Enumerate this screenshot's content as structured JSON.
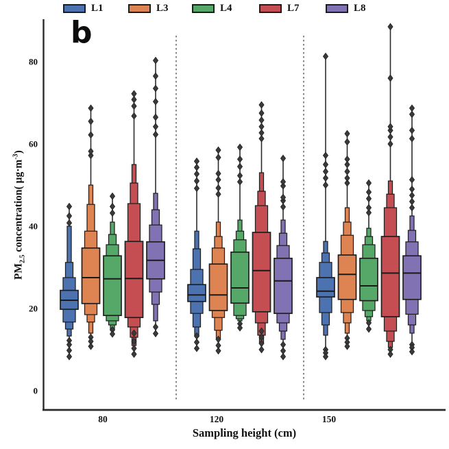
{
  "figure": {
    "panel_label": "b"
  },
  "legend": {
    "position": "top",
    "entries": [
      {
        "label": "L1",
        "color": "#4c72b0"
      },
      {
        "label": "L3",
        "color": "#dd8452"
      },
      {
        "label": "L4",
        "color": "#55a868"
      },
      {
        "label": "L7",
        "color": "#c44e52"
      },
      {
        "label": "L8",
        "color": "#8172b3"
      }
    ]
  },
  "axes": {
    "ylabel_pm": "PM",
    "ylabel_sub": "2.5",
    "ylabel_rest": " concentration( ",
    "ylabel_unit": "μg·m",
    "ylabel_sup": "-3",
    "ylabel_close": ")",
    "xlabel": "Sampling height (cm)",
    "y_ticks": [
      0,
      20,
      40,
      60,
      80
    ],
    "x_tick_labels": [
      "80",
      "120",
      "150"
    ]
  },
  "chart_data": {
    "type": "boxen",
    "description": "Grouped letter-value (boxen) plots of PM2.5 concentration by sampling height; spans are nested quantile boxes [low,high] from widest (innermost) to narrowest (outermost) level, values in ug/m3.",
    "title": "b",
    "xlabel": "Sampling height (cm)",
    "ylabel": "PM2.5 concentration( ug·m-3 )",
    "ylim": [
      0,
      80
    ],
    "grid": false,
    "legend_position": "top",
    "categories": [
      "80",
      "120",
      "150"
    ],
    "series": [
      {
        "name": "L1",
        "color": "#4c72b0",
        "groups": [
          {
            "median": 22.0,
            "spans": [
              [
                19.8,
                24.4
              ],
              [
                16.7,
                27.5
              ],
              [
                15.0,
                31.2
              ],
              [
                13.3,
                40.0
              ]
            ],
            "outliers_high": [
              40.8,
              42.5,
              44.8
            ],
            "outliers_low": [
              12.2,
              11.2,
              9.8,
              8.3
            ]
          },
          {
            "median": 23.3,
            "spans": [
              [
                21.7,
                25.8
              ],
              [
                18.8,
                29.5
              ],
              [
                15.5,
                34.5
              ],
              [
                13.5,
                38.8
              ]
            ],
            "outliers_high": [
              49.2,
              51.0,
              52.7,
              54.3,
              55.8
            ],
            "outliers_low": [
              13.3,
              11.8,
              10.3
            ]
          },
          {
            "median": 24.2,
            "spans": [
              [
                22.8,
                27.5
              ],
              [
                19.0,
                31.2
              ],
              [
                16.0,
                33.5
              ],
              [
                13.5,
                36.3
              ]
            ],
            "outliers_high": [
              50.0,
              51.7,
              53.3,
              55.0,
              57.2,
              81.3
            ],
            "outliers_low": [
              10.0,
              9.2,
              8.3
            ]
          }
        ]
      },
      {
        "name": "L3",
        "color": "#dd8452",
        "groups": [
          {
            "median": 27.5,
            "spans": [
              [
                21.2,
                34.7
              ],
              [
                18.5,
                38.8
              ],
              [
                16.7,
                45.3
              ],
              [
                14.0,
                50.0
              ]
            ],
            "outliers_high": [
              57.2,
              58.2,
              62.2,
              65.5,
              68.7
            ],
            "outliers_low": [
              13.0,
              12.0,
              10.8
            ]
          },
          {
            "median": 23.3,
            "spans": [
              [
                19.5,
                30.8
              ],
              [
                17.8,
                34.7
              ],
              [
                14.7,
                37.5
              ],
              [
                12.5,
                41.0
              ]
            ],
            "outliers_high": [
              47.8,
              49.3,
              51.3,
              52.8,
              56.7,
              58.5
            ],
            "outliers_low": [
              12.5,
              11.0,
              9.7
            ]
          },
          {
            "median": 28.3,
            "spans": [
              [
                22.2,
                33.0
              ],
              [
                19.0,
                37.8
              ],
              [
                16.5,
                41.0
              ],
              [
                14.0,
                44.5
              ]
            ],
            "outliers_high": [
              50.5,
              51.7,
              53.3,
              55.0,
              56.3,
              60.5,
              62.5
            ],
            "outliers_low": [
              12.8,
              11.8,
              10.8
            ]
          }
        ]
      },
      {
        "name": "L4",
        "color": "#55a868",
        "groups": [
          {
            "median": 27.2,
            "spans": [
              [
                18.3,
                32.8
              ],
              [
                17.0,
                35.5
              ],
              [
                16.0,
                38.0
              ],
              [
                15.0,
                41.0
              ]
            ],
            "outliers_high": [
              43.2,
              44.8,
              47.3
            ],
            "outliers_low": [
              14.8,
              13.8
            ]
          },
          {
            "median": 25.0,
            "spans": [
              [
                21.3,
                33.7
              ],
              [
                18.3,
                36.7
              ],
              [
                17.5,
                38.8
              ],
              [
                17.0,
                41.5
              ]
            ],
            "outliers_high": [
              50.8,
              52.3,
              54.5,
              56.3,
              59.2
            ],
            "outliers_low": [
              16.3,
              15.3
            ]
          },
          {
            "median": 25.5,
            "spans": [
              [
                21.9,
                32.2
              ],
              [
                19.5,
                35.5
              ],
              [
                18.0,
                37.5
              ],
              [
                17.0,
                39.5
              ]
            ],
            "outliers_high": [
              43.3,
              44.5,
              46.7,
              48.3,
              50.5
            ],
            "outliers_low": [
              16.5,
              15.0
            ]
          }
        ]
      },
      {
        "name": "L7",
        "color": "#c44e52",
        "groups": [
          {
            "median": 27.3,
            "spans": [
              [
                17.8,
                36.3
              ],
              [
                15.5,
                45.5
              ],
              [
                13.0,
                50.5
              ],
              [
                11.0,
                55.0
              ]
            ],
            "outliers_high": [
              66.8,
              69.2,
              70.8,
              72.2
            ],
            "outliers_low": [
              14.0,
              12.0,
              10.3,
              8.9
            ]
          },
          {
            "median": 29.2,
            "spans": [
              [
                19.2,
                38.5
              ],
              [
                16.5,
                45.0
              ],
              [
                13.5,
                48.5
              ],
              [
                11.5,
                53.0
              ]
            ],
            "outliers_high": [
              61.3,
              62.7,
              64.2,
              65.8,
              67.5,
              69.5
            ],
            "outliers_low": [
              14.5,
              13.0,
              11.5,
              10.0
            ]
          },
          {
            "median": 28.6,
            "spans": [
              [
                18.0,
                37.5
              ],
              [
                14.5,
                44.5
              ],
              [
                12.0,
                47.8
              ],
              [
                10.5,
                51.0
              ]
            ],
            "outliers_high": [
              60.0,
              61.7,
              63.3,
              64.2,
              76.0,
              88.5
            ],
            "outliers_low": [
              10.0,
              8.9
            ]
          }
        ]
      },
      {
        "name": "L8",
        "color": "#8172b3",
        "groups": [
          {
            "median": 31.7,
            "spans": [
              [
                27.2,
                36.2
              ],
              [
                24.0,
                40.3
              ],
              [
                21.0,
                44.0
              ],
              [
                17.0,
                48.0
              ]
            ],
            "outliers_high": [
              62.3,
              64.2,
              66.5,
              70.3,
              73.5,
              76.5,
              80.3
            ],
            "outliers_low": [
              15.5,
              13.9
            ]
          },
          {
            "median": 26.7,
            "spans": [
              [
                18.8,
                32.2
              ],
              [
                16.5,
                35.3
              ],
              [
                14.5,
                38.3
              ],
              [
                12.5,
                41.5
              ]
            ],
            "outliers_high": [
              44.7,
              46.2,
              47.0,
              49.8,
              50.8,
              56.5
            ],
            "outliers_low": [
              11.2,
              9.7,
              8.3
            ]
          },
          {
            "median": 28.6,
            "spans": [
              [
                22.2,
                32.8
              ],
              [
                18.6,
                36.2
              ],
              [
                16.0,
                39.0
              ],
              [
                14.0,
                42.5
              ]
            ],
            "outliers_high": [
              44.5,
              46.0,
              47.5,
              49.0,
              51.3,
              61.3,
              63.3,
              67.2,
              68.7
            ],
            "outliers_low": [
              11.2,
              10.5,
              9.5
            ]
          }
        ]
      }
    ]
  }
}
